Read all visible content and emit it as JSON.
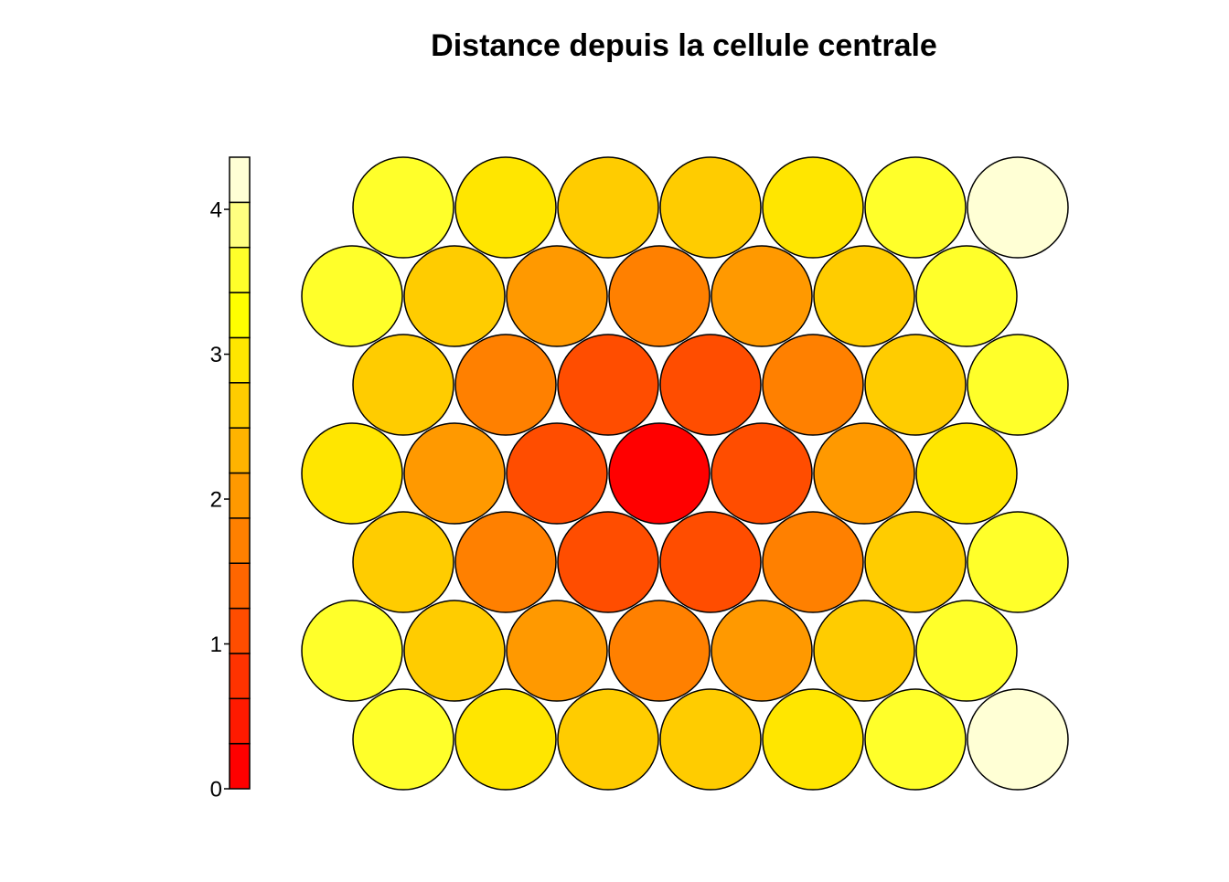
{
  "chart_data": {
    "type": "hexmap",
    "title": "Distance depuis la cellule centrale",
    "values": [
      [
        3.61,
        3,
        2.65,
        2.65,
        3,
        3.61,
        4.36
      ],
      [
        3.46,
        2.65,
        2,
        1.73,
        2,
        2.65,
        3.46
      ],
      [
        2.65,
        1.73,
        1,
        1,
        1.73,
        2.65,
        3.61
      ],
      [
        3,
        2,
        1,
        0,
        1,
        2,
        3
      ],
      [
        2.65,
        1.73,
        1,
        1,
        1.73,
        2.65,
        3.61
      ],
      [
        3.46,
        2.65,
        2,
        1.73,
        2,
        2.65,
        3.46
      ],
      [
        3.61,
        3,
        2.65,
        2.65,
        3,
        3.61,
        4.36
      ]
    ],
    "colors": [
      "#FF0000",
      "#FF1A00",
      "#FF3300",
      "#FF4D00",
      "#FF6600",
      "#FF8000",
      "#FF9900",
      "#FFB300",
      "#FFCC00",
      "#FFE600",
      "#FFFF00",
      "#FFFF2A",
      "#FFFF80",
      "#FFFFD5"
    ],
    "zlim": [
      0,
      4.36
    ],
    "zticks": [
      0,
      1,
      2,
      3,
      4
    ]
  }
}
